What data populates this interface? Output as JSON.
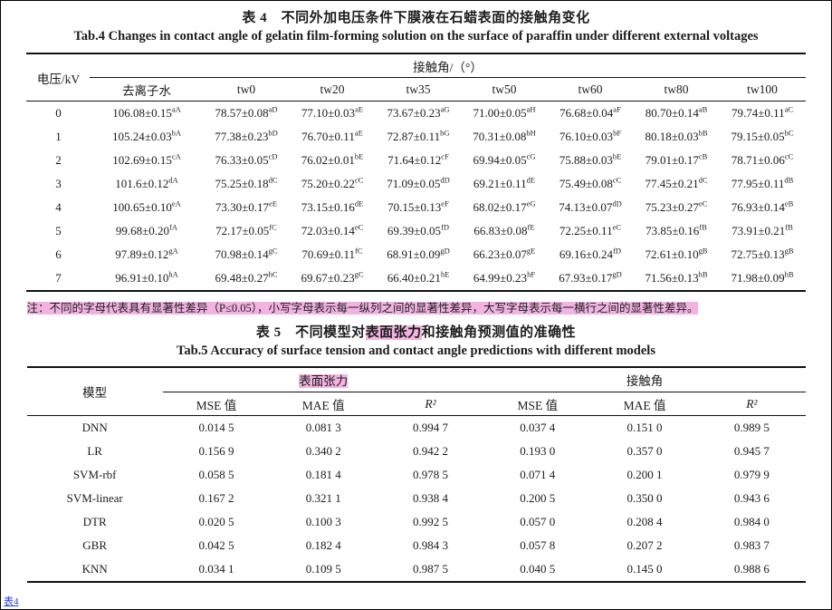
{
  "colors": {
    "highlight_pink": "#f2b3e1",
    "text": "#1c1c1c",
    "link_blue": "#2b3bd6"
  },
  "page": {
    "corner_fragment": "表4"
  },
  "table4": {
    "title_cn": "表 4　不同外加电压条件下膜液在石蜡表面的接触角变化",
    "title_en": "Tab.4 Changes in contact angle of gelatin film-forming solution on the surface of paraffin under different external voltages",
    "col_voltage": "电压/kV",
    "group_header": "接触角/（°）",
    "sub_headers": [
      "去离子水",
      "tw0",
      "tw20",
      "tw35",
      "tw50",
      "tw60",
      "tw80",
      "tw100"
    ],
    "rows": [
      {
        "voltage": "0",
        "cells": [
          [
            "106.08±0.15",
            "aA"
          ],
          [
            "78.57±0.08",
            "aD"
          ],
          [
            "77.10±0.03",
            "aE"
          ],
          [
            "73.67±0.23",
            "aG"
          ],
          [
            "71.00±0.05",
            "aH"
          ],
          [
            "76.68±0.04",
            "aF"
          ],
          [
            "80.70±0.14",
            "aB"
          ],
          [
            "79.74±0.11",
            "aC"
          ]
        ]
      },
      {
        "voltage": "1",
        "cells": [
          [
            "105.24±0.03",
            "bA"
          ],
          [
            "77.38±0.23",
            "bD"
          ],
          [
            "76.70±0.11",
            "aE"
          ],
          [
            "72.87±0.11",
            "bG"
          ],
          [
            "70.31±0.08",
            "bH"
          ],
          [
            "76.10±0.03",
            "bF"
          ],
          [
            "80.18±0.03",
            "bB"
          ],
          [
            "79.15±0.05",
            "bC"
          ]
        ]
      },
      {
        "voltage": "2",
        "cells": [
          [
            "102.69±0.15",
            "cA"
          ],
          [
            "76.33±0.05",
            "cD"
          ],
          [
            "76.02±0.01",
            "bE"
          ],
          [
            "71.64±0.12",
            "cF"
          ],
          [
            "69.94±0.05",
            "cG"
          ],
          [
            "75.88±0.03",
            "bE"
          ],
          [
            "79.01±0.17",
            "cB"
          ],
          [
            "78.71±0.06",
            "cC"
          ]
        ]
      },
      {
        "voltage": "3",
        "cells": [
          [
            "101.6±0.12",
            "dA"
          ],
          [
            "75.25±0.18",
            "dC"
          ],
          [
            "75.20±0.22",
            "cC"
          ],
          [
            "71.09±0.05",
            "dD"
          ],
          [
            "69.21±0.11",
            "dE"
          ],
          [
            "75.49±0.08",
            "cC"
          ],
          [
            "77.45±0.21",
            "dC"
          ],
          [
            "77.95±0.11",
            "dB"
          ]
        ]
      },
      {
        "voltage": "4",
        "cells": [
          [
            "100.65±0.10",
            "eA"
          ],
          [
            "73.30±0.17",
            "eE"
          ],
          [
            "73.15±0.16",
            "dE"
          ],
          [
            "70.15±0.13",
            "eF"
          ],
          [
            "68.02±0.17",
            "eG"
          ],
          [
            "74.13±0.07",
            "dD"
          ],
          [
            "75.23±0.27",
            "eC"
          ],
          [
            "76.93±0.14",
            "eB"
          ]
        ]
      },
      {
        "voltage": "5",
        "cells": [
          [
            "99.68±0.20",
            "fA"
          ],
          [
            "72.17±0.05",
            "fC"
          ],
          [
            "72.03±0.14",
            "eC"
          ],
          [
            "69.39±0.05",
            "fD"
          ],
          [
            "66.83±0.08",
            "fE"
          ],
          [
            "72.25±0.11",
            "eC"
          ],
          [
            "73.85±0.16",
            "fB"
          ],
          [
            "73.91±0.21",
            "fB"
          ]
        ]
      },
      {
        "voltage": "6",
        "cells": [
          [
            "97.89±0.12",
            "gA"
          ],
          [
            "70.98±0.14",
            "gC"
          ],
          [
            "70.69±0.11",
            "fC"
          ],
          [
            "68.91±0.09",
            "gD"
          ],
          [
            "66.23±0.07",
            "gE"
          ],
          [
            "69.16±0.24",
            "fD"
          ],
          [
            "72.61±0.10",
            "gB"
          ],
          [
            "72.75±0.13",
            "gB"
          ]
        ]
      },
      {
        "voltage": "7",
        "cells": [
          [
            "96.91±0.10",
            "hA"
          ],
          [
            "69.48±0.27",
            "hC"
          ],
          [
            "69.67±0.23",
            "gC"
          ],
          [
            "66.40±0.21",
            "hE"
          ],
          [
            "64.99±0.23",
            "hF"
          ],
          [
            "67.93±0.17",
            "gD"
          ],
          [
            "71.56±0.13",
            "hB"
          ],
          [
            "71.98±0.09",
            "hB"
          ]
        ]
      }
    ],
    "note": "注：不同的字母代表具有显著性差异（P≤0.05），小写字母表示每一纵列之间的显著性差异，大写字母表示每一横行之间的显著性差异。"
  },
  "table5": {
    "title_cn_prefix": "表 5　不同模型对",
    "title_cn_highlight": "表面张力",
    "title_cn_suffix": "和接触角预测值的准确性",
    "title_en": "Tab.5 Accuracy of surface tension and contact angle predictions with different models",
    "col_model": "模型",
    "group_headers": [
      {
        "label": "表面张力",
        "highlighted": true
      },
      {
        "label": "接触角",
        "highlighted": false
      }
    ],
    "sub_headers": [
      "MSE 值",
      "MAE 值",
      "R²",
      "MSE 值",
      "MAE 值",
      "R²"
    ],
    "rows": [
      {
        "model": "DNN",
        "values": [
          "0.014 5",
          "0.081 3",
          "0.994 7",
          "0.037 4",
          "0.151 0",
          "0.989 5"
        ]
      },
      {
        "model": "LR",
        "values": [
          "0.156 9",
          "0.340 2",
          "0.942 2",
          "0.193 0",
          "0.357 0",
          "0.945 7"
        ]
      },
      {
        "model": "SVM-rbf",
        "values": [
          "0.058 5",
          "0.181 4",
          "0.978 5",
          "0.071 4",
          "0.200 1",
          "0.979 9"
        ]
      },
      {
        "model": "SVM-linear",
        "values": [
          "0.167 2",
          "0.321 1",
          "0.938 4",
          "0.200 5",
          "0.350 0",
          "0.943 6"
        ]
      },
      {
        "model": "DTR",
        "values": [
          "0.020 5",
          "0.100 3",
          "0.992 5",
          "0.057 0",
          "0.208 4",
          "0.984 0"
        ]
      },
      {
        "model": "GBR",
        "values": [
          "0.042 5",
          "0.182 4",
          "0.984 3",
          "0.057 8",
          "0.207 2",
          "0.983 7"
        ]
      },
      {
        "model": "KNN",
        "values": [
          "0.034 1",
          "0.109 5",
          "0.987 5",
          "0.040 5",
          "0.145 0",
          "0.988 6"
        ]
      }
    ]
  }
}
